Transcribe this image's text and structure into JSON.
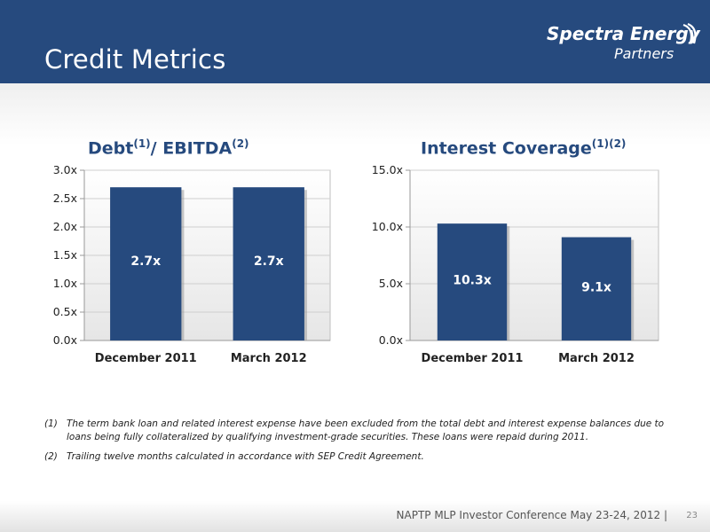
{
  "header": {
    "title": "Credit Metrics",
    "logo_brand": "Spectra Energy",
    "logo_sub": "Partners"
  },
  "charts": {
    "left": {
      "title_main": "Debt",
      "title_sup1": "(1)",
      "title_mid": "/ EBITDA",
      "title_sup2": "(2)"
    },
    "right": {
      "title_main": "Interest Coverage",
      "title_sup": "(1)(2)"
    }
  },
  "chart_data": [
    {
      "type": "bar",
      "title": "Debt(1)/ EBITDA(2)",
      "categories": [
        "December 2011",
        "March 2012"
      ],
      "values": [
        2.7,
        2.7
      ],
      "data_labels": [
        "2.7x",
        "2.7x"
      ],
      "ylim": [
        0,
        3.0
      ],
      "yticks": [
        "0.0x",
        "0.5x",
        "1.0x",
        "1.5x",
        "2.0x",
        "2.5x",
        "3.0x"
      ],
      "grid": true,
      "bar_color": "#264a7e"
    },
    {
      "type": "bar",
      "title": "Interest Coverage(1)(2)",
      "categories": [
        "December 2011",
        "March 2012"
      ],
      "values": [
        10.3,
        9.1
      ],
      "data_labels": [
        "10.3x",
        "9.1x"
      ],
      "ylim": [
        0,
        15.0
      ],
      "yticks": [
        "0.0x",
        "5.0x",
        "10.0x",
        "15.0x"
      ],
      "grid": true,
      "bar_color": "#264a7e"
    }
  ],
  "footnotes": [
    {
      "num": "(1)",
      "text": "The term bank loan and related interest expense have been excluded from the total debt and interest expense balances due to loans being fully collateralized by qualifying investment-grade securities. These loans were repaid during 2011."
    },
    {
      "num": "(2)",
      "text": "Trailing twelve months calculated in accordance with SEP Credit Agreement."
    }
  ],
  "footer": {
    "text": "NAPTP MLP Investor Conference May 23-24, 2012  |",
    "page": "23"
  },
  "colors": {
    "header_bg": "#264a7e",
    "bar": "#264a7e",
    "title_text": "#264a7e"
  }
}
